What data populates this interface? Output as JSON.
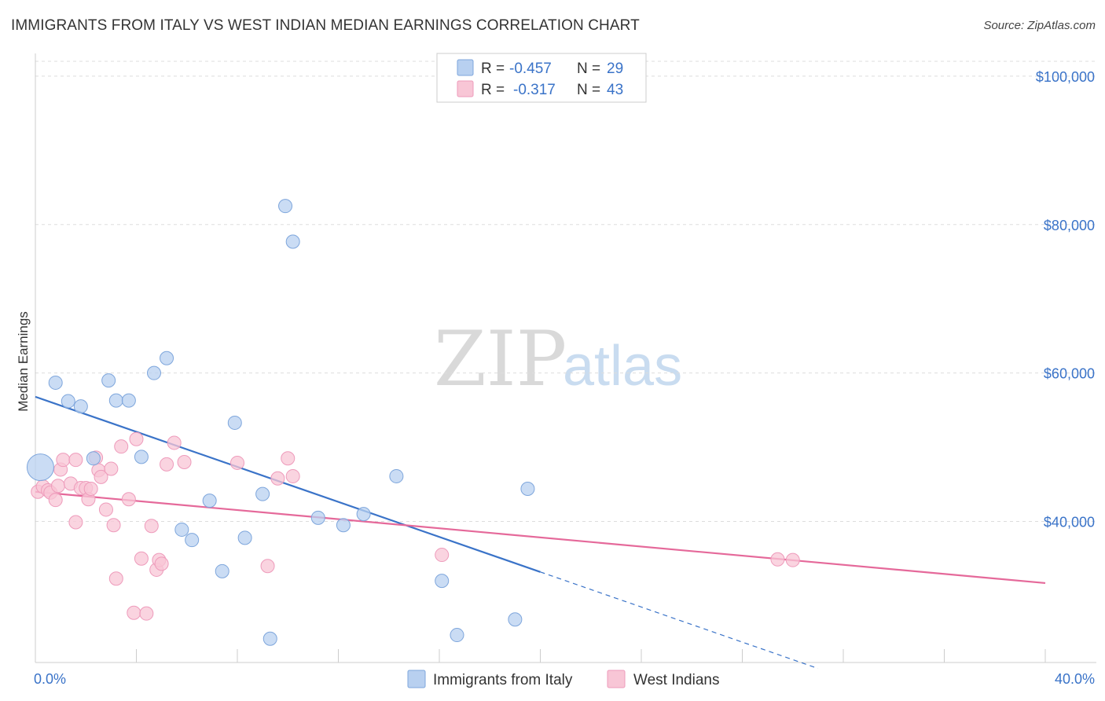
{
  "title": "IMMIGRANTS FROM ITALY VS WEST INDIAN MEDIAN EARNINGS CORRELATION CHART",
  "source": "Source: ZipAtlas.com",
  "watermark": {
    "zip": "ZIP",
    "atlas": "atlas"
  },
  "colors": {
    "blue": "#3a73c8",
    "blue_fill": "#b8d0f0",
    "blue_stroke": "#7ea6dc",
    "pink": "#e5699a",
    "pink_fill": "#f8c6d6",
    "pink_stroke": "#ee9bbb",
    "grid": "#dddddd",
    "axis_text": "#3a73c8"
  },
  "legend": {
    "rows": [
      {
        "r_label": "R =",
        "r_value": "-0.457",
        "n_label": "N =",
        "n_value": "29"
      },
      {
        "r_label": "R =",
        "r_value": "-0.317",
        "n_label": "N =",
        "n_value": "43"
      }
    ]
  },
  "chart_data": {
    "type": "scatter",
    "title": "IMMIGRANTS FROM ITALY VS WEST INDIAN MEDIAN EARNINGS CORRELATION CHART",
    "xlabel": "",
    "ylabel": "Median Earnings",
    "xlim": [
      0,
      40
    ],
    "ylim": [
      21000,
      102000
    ],
    "x_tick_labels": [
      {
        "value": 0,
        "label": "0.0%"
      },
      {
        "value": 40,
        "label": "40.0%"
      }
    ],
    "y_ticks": [
      {
        "value": 40000,
        "label": "$40,000"
      },
      {
        "value": 60000,
        "label": "$60,000"
      },
      {
        "value": 80000,
        "label": "$80,000"
      },
      {
        "value": 100000,
        "label": "$100,000"
      }
    ],
    "series": [
      {
        "name": "Immigrants from Italy",
        "color": "blue",
        "r": -0.457,
        "n": 29,
        "trend": {
          "x0": 0,
          "y0": 56800,
          "x1": 20,
          "y1": 33200,
          "dash_to_x": 31,
          "dash_to_y": 20200
        },
        "points": [
          {
            "x": 0.2,
            "y": 47300,
            "size": "large"
          },
          {
            "x": 0.8,
            "y": 58700
          },
          {
            "x": 1.3,
            "y": 56200
          },
          {
            "x": 1.8,
            "y": 55500
          },
          {
            "x": 2.3,
            "y": 48500
          },
          {
            "x": 2.9,
            "y": 59000
          },
          {
            "x": 3.2,
            "y": 56300
          },
          {
            "x": 3.7,
            "y": 56300
          },
          {
            "x": 4.2,
            "y": 48700
          },
          {
            "x": 4.7,
            "y": 60000
          },
          {
            "x": 5.2,
            "y": 62000
          },
          {
            "x": 5.8,
            "y": 38900
          },
          {
            "x": 6.2,
            "y": 37500
          },
          {
            "x": 6.9,
            "y": 42800
          },
          {
            "x": 7.4,
            "y": 33300
          },
          {
            "x": 7.9,
            "y": 53300
          },
          {
            "x": 8.3,
            "y": 37800
          },
          {
            "x": 9.0,
            "y": 43700
          },
          {
            "x": 9.3,
            "y": 24200
          },
          {
            "x": 9.9,
            "y": 82500
          },
          {
            "x": 10.2,
            "y": 77700
          },
          {
            "x": 11.2,
            "y": 40500
          },
          {
            "x": 12.2,
            "y": 39500
          },
          {
            "x": 13.0,
            "y": 41000
          },
          {
            "x": 14.3,
            "y": 46100
          },
          {
            "x": 16.1,
            "y": 32000
          },
          {
            "x": 16.7,
            "y": 24700
          },
          {
            "x": 19.0,
            "y": 26800
          },
          {
            "x": 19.5,
            "y": 44400
          }
        ]
      },
      {
        "name": "West Indians",
        "color": "pink",
        "r": -0.317,
        "n": 43,
        "trend": {
          "x0": 0,
          "y0": 44000,
          "x1": 40,
          "y1": 31700
        },
        "points": [
          {
            "x": 0.1,
            "y": 44000
          },
          {
            "x": 0.3,
            "y": 44700
          },
          {
            "x": 0.5,
            "y": 44200
          },
          {
            "x": 0.6,
            "y": 43900
          },
          {
            "x": 0.8,
            "y": 42900
          },
          {
            "x": 0.9,
            "y": 44800
          },
          {
            "x": 1.0,
            "y": 47000
          },
          {
            "x": 1.1,
            "y": 48300
          },
          {
            "x": 1.4,
            "y": 45100
          },
          {
            "x": 1.6,
            "y": 48300
          },
          {
            "x": 1.6,
            "y": 39900
          },
          {
            "x": 1.8,
            "y": 44500
          },
          {
            "x": 2.0,
            "y": 44500
          },
          {
            "x": 2.1,
            "y": 43000
          },
          {
            "x": 2.2,
            "y": 44400
          },
          {
            "x": 2.4,
            "y": 48600
          },
          {
            "x": 2.5,
            "y": 46900
          },
          {
            "x": 2.6,
            "y": 46000
          },
          {
            "x": 2.8,
            "y": 41600
          },
          {
            "x": 3.0,
            "y": 47100
          },
          {
            "x": 3.1,
            "y": 39500
          },
          {
            "x": 3.2,
            "y": 32300
          },
          {
            "x": 3.4,
            "y": 50100
          },
          {
            "x": 3.7,
            "y": 43000
          },
          {
            "x": 3.9,
            "y": 27700
          },
          {
            "x": 4.0,
            "y": 51100
          },
          {
            "x": 4.2,
            "y": 35000
          },
          {
            "x": 4.4,
            "y": 27600
          },
          {
            "x": 4.6,
            "y": 39400
          },
          {
            "x": 4.8,
            "y": 33500
          },
          {
            "x": 4.9,
            "y": 34800
          },
          {
            "x": 5.0,
            "y": 34300
          },
          {
            "x": 5.2,
            "y": 47700
          },
          {
            "x": 5.5,
            "y": 50600
          },
          {
            "x": 5.9,
            "y": 48000
          },
          {
            "x": 8.0,
            "y": 47900
          },
          {
            "x": 9.2,
            "y": 34000
          },
          {
            "x": 9.6,
            "y": 45800
          },
          {
            "x": 10.0,
            "y": 48500
          },
          {
            "x": 10.2,
            "y": 46100
          },
          {
            "x": 16.1,
            "y": 35500
          },
          {
            "x": 29.4,
            "y": 34900
          },
          {
            "x": 30.0,
            "y": 34800
          }
        ]
      }
    ]
  }
}
